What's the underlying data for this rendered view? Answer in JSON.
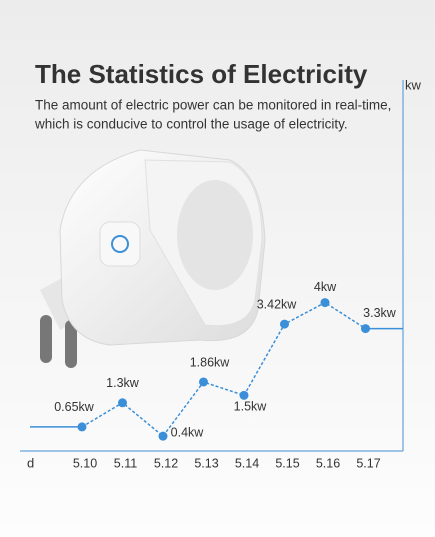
{
  "chart_data": {
    "type": "line",
    "title": "The Statistics of Electricity",
    "subtitle": [
      "The amount of electric power can be monitored in real-time,",
      "which is conducive to control the usage of electricity."
    ],
    "y_axis_label": "kw",
    "x_axis_label": "d",
    "categories": [
      "5.10",
      "5.11",
      "5.12",
      "5.13",
      "5.14",
      "5.15",
      "5.16",
      "5.17"
    ],
    "values": [
      0.65,
      1.3,
      0.4,
      1.86,
      1.5,
      3.42,
      4,
      3.3
    ],
    "value_labels": [
      "0.65kw",
      "1.3kw",
      "0.4kw",
      "1.86kw",
      "1.5kw",
      "3.42kw",
      "4kw",
      "3.3kw"
    ],
    "ylim": [
      0,
      10
    ],
    "color": "#3b8fd8"
  }
}
